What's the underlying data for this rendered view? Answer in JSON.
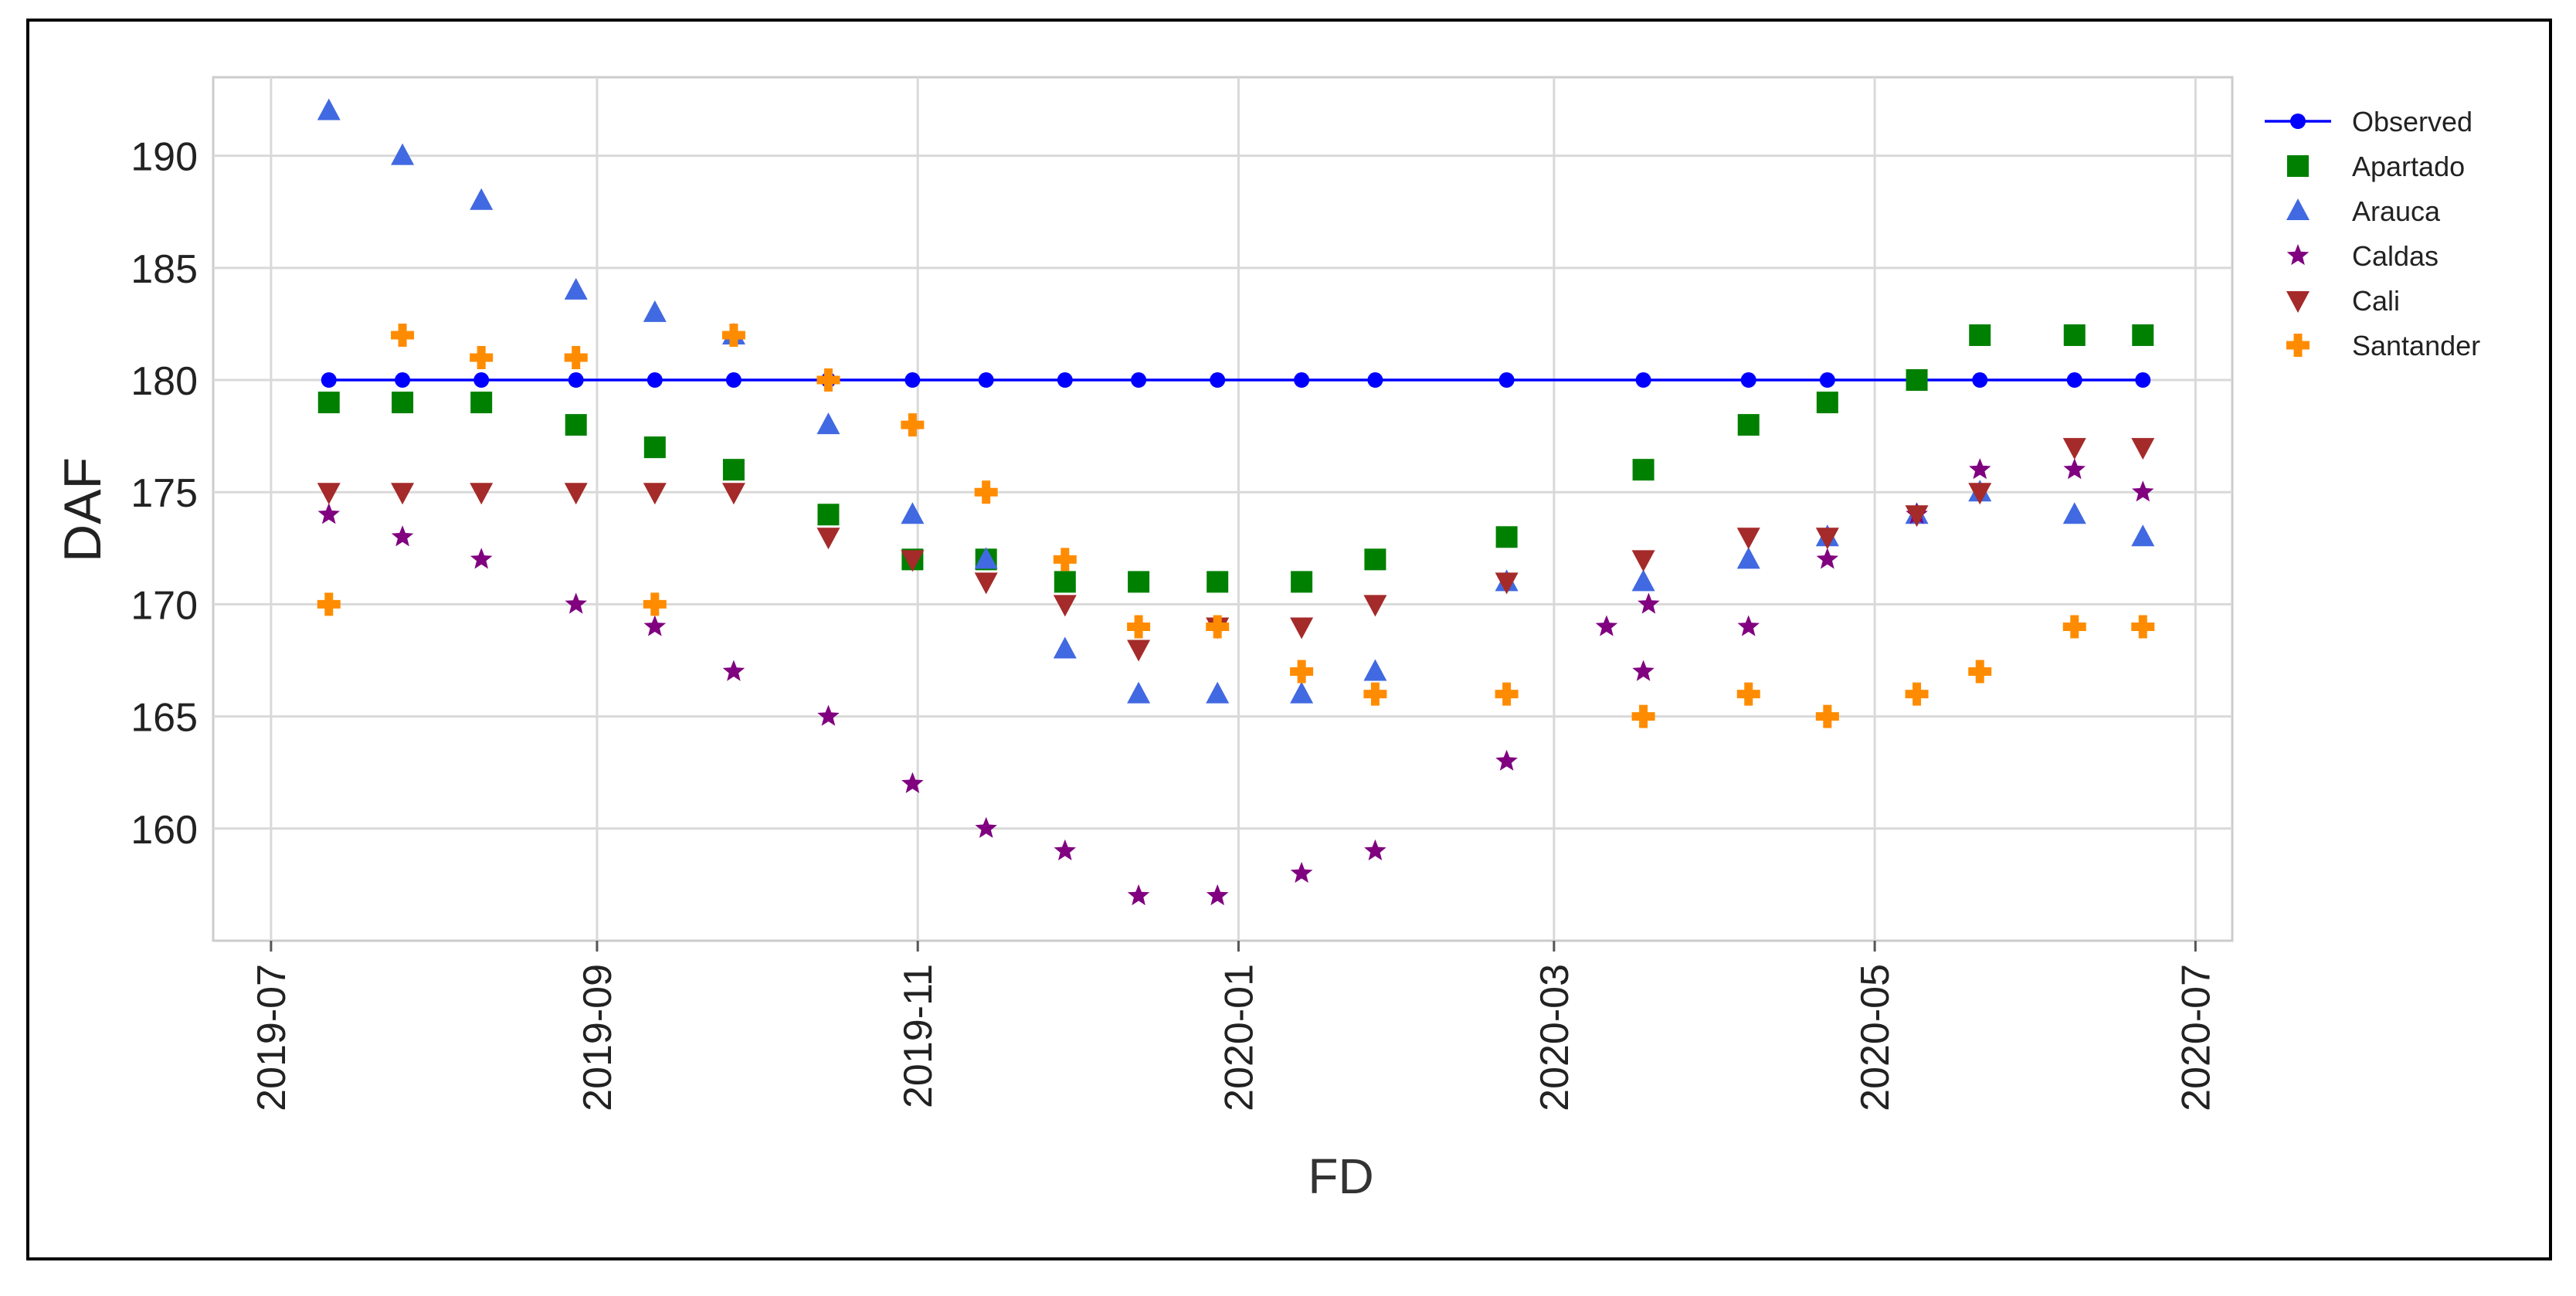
{
  "chart_data": {
    "type": "scatter",
    "title": "",
    "xlabel": "FD",
    "ylabel": "DAF",
    "grid": true,
    "legend_position": "upper-right-outside",
    "x_ticks": [
      "2019-07",
      "2019-09",
      "2019-11",
      "2020-01",
      "2020-03",
      "2020-05",
      "2020-07"
    ],
    "y_ticks": [
      160,
      165,
      170,
      175,
      180,
      185,
      190
    ],
    "xlim": [
      "2019-06-20",
      "2020-07-08"
    ],
    "ylim": [
      155.0,
      193.5
    ],
    "x": [
      "2019-07-12",
      "2019-07-26",
      "2019-08-10",
      "2019-08-28",
      "2019-09-12",
      "2019-09-27",
      "2019-10-15",
      "2019-10-31",
      "2019-11-14",
      "2019-11-29",
      "2019-12-13",
      "2019-12-28",
      "2020-01-13",
      "2020-01-27",
      "2020-02-21",
      "2020-03-18",
      "2020-04-07",
      "2020-04-22",
      "2020-05-09",
      "2020-05-21",
      "2020-06-08",
      "2020-06-21"
    ],
    "series": [
      {
        "name": "Observed",
        "marker": "circle-line",
        "color": "#0000ff",
        "values": [
          180,
          180,
          180,
          180,
          180,
          180,
          180,
          180,
          180,
          180,
          180,
          180,
          180,
          180,
          180,
          180,
          180,
          180,
          180,
          180,
          180,
          180
        ]
      },
      {
        "name": "Apartado",
        "marker": "square",
        "color": "#008000",
        "values": [
          179,
          179,
          179,
          178,
          177,
          176,
          174,
          172,
          172,
          171,
          171,
          171,
          171,
          172,
          173,
          176,
          178,
          179,
          180,
          182,
          182,
          182
        ]
      },
      {
        "name": "Arauca",
        "marker": "triangle-up",
        "color": "#4169e1",
        "values": [
          192,
          190,
          188,
          184,
          183,
          182,
          178,
          174,
          172,
          168,
          166,
          166,
          166,
          167,
          171,
          171,
          172,
          173,
          174,
          175,
          174,
          173
        ]
      },
      {
        "name": "Caldas",
        "marker": "star",
        "color": "#800080",
        "values": [
          174,
          173,
          172,
          170,
          169,
          167,
          165,
          162,
          160,
          159,
          157,
          157,
          158,
          159,
          163,
          167,
          169,
          172,
          174,
          176,
          176,
          175
        ],
        "extra_points": [
          {
            "x": "2020-03-11",
            "y": 169
          },
          {
            "x": "2020-03-19",
            "y": 170
          }
        ]
      },
      {
        "name": "Cali",
        "marker": "triangle-down",
        "color": "#a52a2a",
        "values": [
          175,
          175,
          175,
          175,
          175,
          175,
          173,
          172,
          171,
          170,
          168,
          169,
          169,
          170,
          171,
          172,
          173,
          173,
          174,
          175,
          177,
          177
        ]
      },
      {
        "name": "Santander",
        "marker": "plus",
        "color": "#ff8c00",
        "values": [
          170,
          182,
          181,
          181,
          170,
          182,
          180,
          178,
          175,
          172,
          169,
          169,
          167,
          166,
          166,
          165,
          166,
          165,
          166,
          167,
          169,
          169
        ]
      }
    ]
  }
}
